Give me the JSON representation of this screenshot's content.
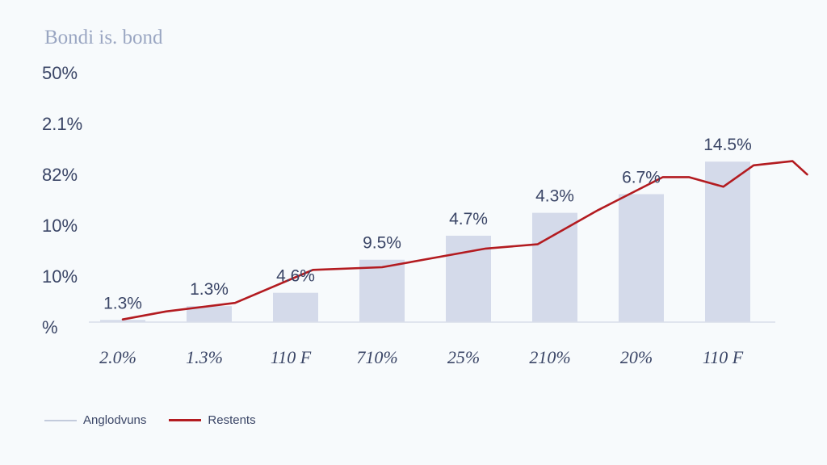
{
  "chart_data": {
    "type": "bar",
    "title": "Bondi is. bond",
    "y_tick_labels": [
      "50%",
      "2.1%",
      "82%",
      "10%",
      "10%",
      "%"
    ],
    "categories": [
      "2.0%",
      "1.3%",
      "110 F",
      "710%",
      "25%",
      "210%",
      "20%",
      "110 F"
    ],
    "series": [
      {
        "name": "Anglodvuns",
        "type": "bar",
        "values": [
          0.4,
          3.0,
          5.5,
          11.7,
          16.2,
          20.5,
          24.0,
          30.1
        ],
        "labels": [
          "1.3%",
          "1.3%",
          "4.6%",
          "9.5%",
          "4.7%",
          "4.3%",
          "6.7%",
          "14.5%"
        ]
      },
      {
        "name": "Restents",
        "type": "line",
        "x": [
          0.0,
          0.5,
          1.3,
          2.2,
          3.0,
          4.2,
          4.8,
          5.5,
          6.25,
          6.55,
          6.95,
          7.3,
          7.75,
          7.92
        ],
        "values": [
          0.5,
          2.0,
          3.6,
          9.8,
          10.3,
          13.8,
          14.6,
          21.0,
          27.2,
          27.2,
          25.4,
          29.4,
          30.2,
          27.7
        ]
      }
    ],
    "ylim": [
      0,
      48
    ],
    "grid": false,
    "legend_position": "bottom-left",
    "colors": {
      "bar": "#d4daea",
      "line": "#b31b20",
      "text": "#3a4566",
      "title": "#9aa6c2"
    }
  }
}
